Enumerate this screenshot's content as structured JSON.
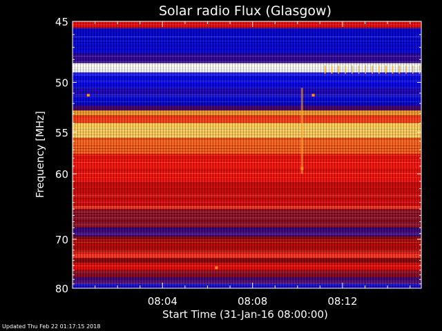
{
  "chart_data": {
    "type": "heatmap",
    "title": "Solar radio Flux (Glasgow)",
    "xlabel": "Start Time (31-Jan-16 08:00:00)",
    "ylabel": "Frequency [MHz]",
    "x_range_minutes": [
      0,
      15.5
    ],
    "y_range_mhz": [
      45,
      80
    ],
    "x_ticks": [
      {
        "value": 4,
        "label": "08:04"
      },
      {
        "value": 8,
        "label": "08:08"
      },
      {
        "value": 12,
        "label": "08:12"
      }
    ],
    "y_ticks": [
      {
        "value": 45,
        "label": "45"
      },
      {
        "value": 50,
        "label": "50"
      },
      {
        "value": 55,
        "label": "55"
      },
      {
        "value": 60,
        "label": "60"
      },
      {
        "value": 70,
        "label": "70"
      },
      {
        "value": 80,
        "label": "80"
      }
    ],
    "y_scale": "reciprocal",
    "colormap": [
      "#000060",
      "#0000ff",
      "#400080",
      "#a00000",
      "#ff0000",
      "#ff8000",
      "#ffff80",
      "#ffffff"
    ],
    "frequency_bands": [
      {
        "f0": 45.0,
        "f1": 45.5,
        "level": 0.55
      },
      {
        "f0": 45.5,
        "f1": 47.5,
        "level": 0.12
      },
      {
        "f0": 47.5,
        "f1": 48.3,
        "level": 0.25
      },
      {
        "f0": 48.3,
        "f1": 49.1,
        "level": 1.0
      },
      {
        "f0": 49.1,
        "f1": 50.5,
        "level": 0.15
      },
      {
        "f0": 50.5,
        "f1": 51.2,
        "level": 0.2
      },
      {
        "f0": 51.2,
        "f1": 52.2,
        "level": 0.12
      },
      {
        "f0": 52.2,
        "f1": 52.7,
        "level": 0.3
      },
      {
        "f0": 52.7,
        "f1": 53.2,
        "level": 0.75
      },
      {
        "f0": 53.2,
        "f1": 54.0,
        "level": 0.62
      },
      {
        "f0": 54.0,
        "f1": 55.6,
        "level": 0.8
      },
      {
        "f0": 55.6,
        "f1": 57.5,
        "level": 0.66
      },
      {
        "f0": 57.5,
        "f1": 61.0,
        "level": 0.58
      },
      {
        "f0": 61.0,
        "f1": 64.5,
        "level": 0.52
      },
      {
        "f0": 64.5,
        "f1": 65.0,
        "level": 0.6
      },
      {
        "f0": 65.0,
        "f1": 68.0,
        "level": 0.4
      },
      {
        "f0": 68.0,
        "f1": 69.5,
        "level": 0.28
      },
      {
        "f0": 69.5,
        "f1": 70.0,
        "level": 0.42
      },
      {
        "f0": 70.0,
        "f1": 72.5,
        "level": 0.48
      },
      {
        "f0": 72.5,
        "f1": 73.5,
        "level": 0.6
      },
      {
        "f0": 73.5,
        "f1": 74.5,
        "level": 0.42
      },
      {
        "f0": 74.5,
        "f1": 76.0,
        "level": 0.55
      },
      {
        "f0": 76.0,
        "f1": 77.5,
        "level": 0.4
      },
      {
        "f0": 77.5,
        "f1": 79.0,
        "level": 0.3
      },
      {
        "f0": 79.0,
        "f1": 80.0,
        "level": 0.18
      }
    ],
    "features": [
      {
        "kind": "burst",
        "time": 10.2,
        "f0": 50.5,
        "f1": 60.0
      },
      {
        "kind": "periodic-dashes",
        "t0": 11.2,
        "t1": 15.5,
        "f": 48.8,
        "period": 0.3
      },
      {
        "kind": "spot",
        "time": 0.7,
        "f": 51.2
      },
      {
        "kind": "spot",
        "time": 10.7,
        "f": 51.2
      },
      {
        "kind": "spot",
        "time": 10.2,
        "f": 59.3
      },
      {
        "kind": "spot",
        "time": 6.4,
        "f": 75.5
      }
    ]
  },
  "footer": {
    "updated_text": "Updated Thu Feb 22 01:17:15 2018"
  }
}
